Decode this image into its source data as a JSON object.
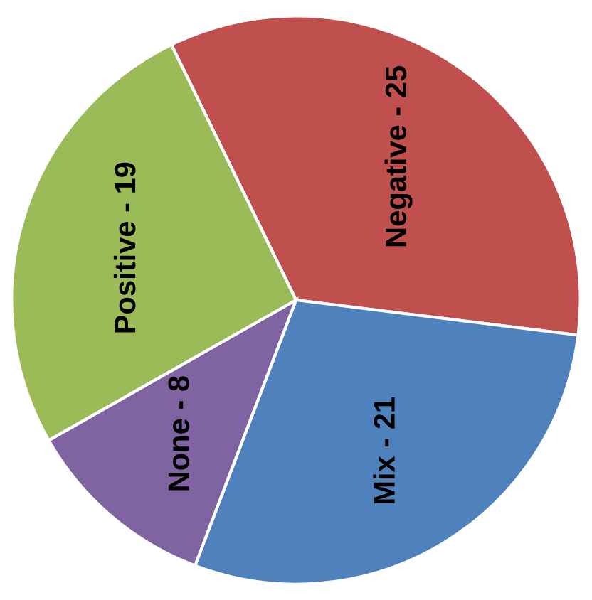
{
  "chart_data": {
    "type": "pie",
    "categories": [
      "Negative - 25",
      "Mix - 21",
      "None - 8",
      "Positive - 19"
    ],
    "values": [
      34.2,
      28.8,
      11.0,
      26.0
    ],
    "colors": [
      "#c0504d",
      "#4f81bd",
      "#8064a2",
      "#9bbb59"
    ]
  }
}
